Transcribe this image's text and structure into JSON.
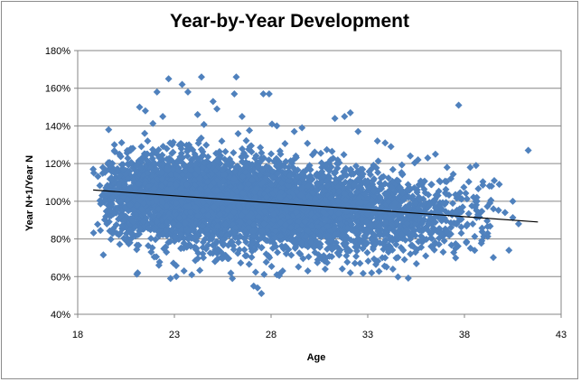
{
  "chart_data": {
    "type": "scatter",
    "title": "Year-by-Year Development",
    "xlabel": "Age",
    "ylabel": "Year N+1/Year N",
    "xlim": [
      18,
      43
    ],
    "ylim": [
      0.4,
      1.8
    ],
    "x_ticks": [
      "18",
      "23",
      "28",
      "33",
      "38",
      "43"
    ],
    "y_ticks": [
      "40%",
      "60%",
      "80%",
      "100%",
      "120%",
      "140%",
      "160%",
      "180%"
    ],
    "grid": "horizontal",
    "legend": "none",
    "marker": "diamond",
    "marker_color": "#4f81bd",
    "trendline": {
      "x": [
        18.8,
        41.8
      ],
      "y": [
        1.06,
        0.89
      ],
      "color": "#000000"
    },
    "cloud": [
      {
        "x": 22.5,
        "y": 1.02,
        "sx": 1.4,
        "sy": 0.12,
        "n": 900
      },
      {
        "x": 25.0,
        "y": 1.01,
        "sx": 1.5,
        "sy": 0.12,
        "n": 1000
      },
      {
        "x": 27.5,
        "y": 0.98,
        "sx": 1.5,
        "sy": 0.12,
        "n": 1000
      },
      {
        "x": 30.0,
        "y": 0.96,
        "sx": 1.4,
        "sy": 0.11,
        "n": 800
      },
      {
        "x": 32.5,
        "y": 0.94,
        "sx": 1.3,
        "sy": 0.11,
        "n": 550
      },
      {
        "x": 35.0,
        "y": 0.93,
        "sx": 1.3,
        "sy": 0.1,
        "n": 350
      },
      {
        "x": 37.5,
        "y": 0.92,
        "sx": 1.1,
        "sy": 0.09,
        "n": 120
      },
      {
        "x": 20.5,
        "y": 1.03,
        "sx": 0.8,
        "sy": 0.1,
        "n": 250
      }
    ],
    "outliers": [
      [
        18.8,
        1.17
      ],
      [
        19.3,
        1.18
      ],
      [
        19.6,
        1.38
      ],
      [
        19.9,
        1.3
      ],
      [
        20.2,
        1.24
      ],
      [
        21.2,
        1.5
      ],
      [
        21.5,
        1.48
      ],
      [
        22.1,
        1.58
      ],
      [
        22.7,
        1.65
      ],
      [
        23.4,
        1.62
      ],
      [
        23.7,
        1.58
      ],
      [
        24.4,
        1.66
      ],
      [
        25.0,
        1.53
      ],
      [
        25.2,
        1.49
      ],
      [
        26.1,
        1.57
      ],
      [
        26.2,
        1.66
      ],
      [
        26.5,
        1.45
      ],
      [
        27.6,
        1.57
      ],
      [
        27.9,
        1.57
      ],
      [
        28.3,
        1.4
      ],
      [
        29.6,
        1.39
      ],
      [
        31.3,
        1.44
      ],
      [
        31.8,
        1.45
      ],
      [
        32.1,
        1.47
      ],
      [
        32.5,
        1.37
      ],
      [
        33.5,
        1.32
      ],
      [
        34.2,
        1.29
      ],
      [
        35.6,
        1.22
      ],
      [
        36.1,
        1.23
      ],
      [
        37.1,
        1.18
      ],
      [
        37.7,
        1.51
      ],
      [
        38.3,
        1.18
      ],
      [
        38.6,
        1.19
      ],
      [
        39.8,
        1.09
      ],
      [
        41.3,
        1.27
      ],
      [
        40.5,
        1.0
      ],
      [
        40.3,
        0.74
      ],
      [
        40.8,
        0.88
      ],
      [
        39.2,
        0.83
      ],
      [
        38.9,
        0.79
      ],
      [
        38.1,
        0.78
      ],
      [
        36.9,
        0.73
      ],
      [
        36.0,
        0.71
      ],
      [
        34.9,
        0.69
      ],
      [
        34.3,
        0.64
      ],
      [
        33.2,
        0.62
      ],
      [
        32.6,
        0.67
      ],
      [
        32.1,
        0.62
      ],
      [
        30.8,
        0.64
      ],
      [
        29.9,
        0.63
      ],
      [
        28.6,
        0.63
      ],
      [
        28.3,
        0.61
      ],
      [
        27.5,
        0.51
      ],
      [
        27.3,
        0.54
      ],
      [
        27.1,
        0.55
      ],
      [
        26.0,
        0.59
      ],
      [
        25.1,
        0.68
      ],
      [
        24.5,
        0.7
      ],
      [
        23.9,
        0.61
      ],
      [
        23.5,
        0.63
      ],
      [
        23.1,
        0.6
      ],
      [
        22.8,
        0.59
      ],
      [
        22.2,
        0.66
      ],
      [
        21.8,
        0.73
      ],
      [
        21.1,
        0.62
      ],
      [
        20.7,
        0.78
      ],
      [
        20.3,
        0.87
      ],
      [
        19.7,
        0.95
      ],
      [
        19.4,
        1.05
      ],
      [
        22.4,
        1.45
      ],
      [
        24.2,
        1.46
      ],
      [
        29.2,
        1.37
      ],
      [
        33.9,
        1.31
      ],
      [
        35.2,
        1.24
      ],
      [
        36.5,
        1.25
      ],
      [
        37.3,
        1.12
      ],
      [
        39.4,
        1.08
      ],
      [
        39.5,
        0.96
      ],
      [
        38.7,
        0.93
      ],
      [
        40.1,
        0.94
      ]
    ]
  }
}
